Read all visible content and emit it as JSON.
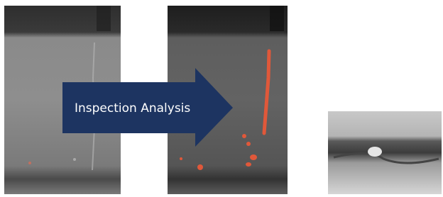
{
  "arrow": {
    "label": "Inspection Analysis"
  }
}
